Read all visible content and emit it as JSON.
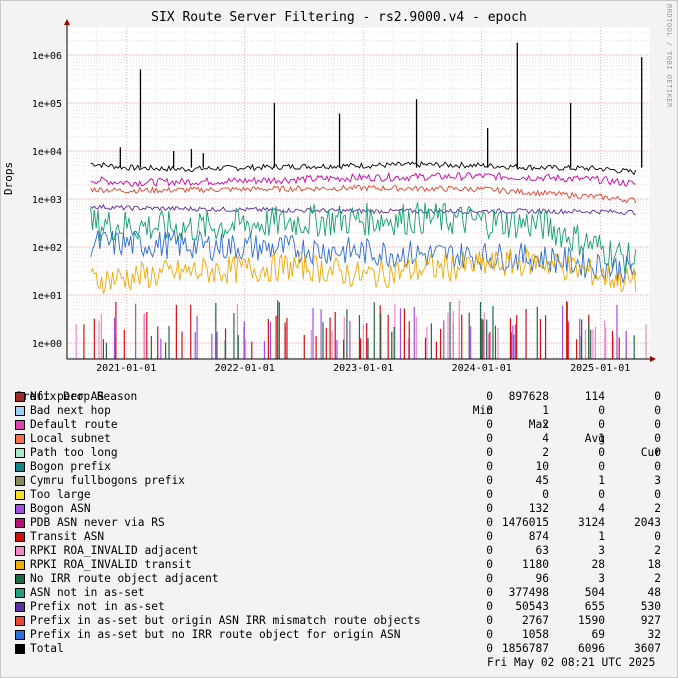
{
  "header": {
    "title": "SIX Route Server Filtering - rs2.9000.v4 - epoch",
    "watermark": "RRDTOOL / TOBI OETIKER"
  },
  "chart_data": {
    "type": "line",
    "title": "SIX Route Server Filtering - rs2.9000.v4 - epoch",
    "ylabel": "Drops",
    "xlabel": "",
    "y_scale": "log",
    "ylim": [
      0.7,
      3000000
    ],
    "xlim": [
      "2020-07-01",
      "2025-06-01"
    ],
    "grid": true,
    "y_ticks": [
      "1e+00",
      "1e+01",
      "1e+02",
      "1e+03",
      "1e+04",
      "1e+05",
      "1e+06"
    ],
    "x_ticks": [
      "2021-01-01",
      "2022-01-01",
      "2023-01-01",
      "2024-01-01",
      "2025-01-01"
    ],
    "background": "#ffffff",
    "grid_color": "#f0a0a0",
    "series": [
      {
        "name": "Total",
        "color": "#000000",
        "points": [
          [
            2020.7,
            5500
          ],
          [
            2021.0,
            4500
          ],
          [
            2021.5,
            4200
          ],
          [
            2022.0,
            4500
          ],
          [
            2022.5,
            4800
          ],
          [
            2023.0,
            5000
          ],
          [
            2023.5,
            5200
          ],
          [
            2024.0,
            5000
          ],
          [
            2024.5,
            4500
          ],
          [
            2025.0,
            4300
          ],
          [
            2025.3,
            3600
          ]
        ]
      },
      {
        "name": "PDB ASN never via RS",
        "color": "#cc00aa",
        "points": [
          [
            2020.7,
            2500
          ],
          [
            2021.0,
            2200
          ],
          [
            2022.0,
            2400
          ],
          [
            2023.0,
            2800
          ],
          [
            2024.0,
            3000
          ],
          [
            2024.5,
            2800
          ],
          [
            2025.0,
            2500
          ],
          [
            2025.3,
            2043
          ]
        ]
      },
      {
        "name": "Prefix in as-set but origin ASN IRR mismatch route objects",
        "color": "#e8402a",
        "points": [
          [
            2020.7,
            1600
          ],
          [
            2021.0,
            1500
          ],
          [
            2022.0,
            1600
          ],
          [
            2023.0,
            1700
          ],
          [
            2024.0,
            1600
          ],
          [
            2025.0,
            1100
          ],
          [
            2025.3,
            927
          ]
        ]
      },
      {
        "name": "Prefix not in as-set",
        "color": "#5a2aa0",
        "points": [
          [
            2020.7,
            700
          ],
          [
            2021.0,
            650
          ],
          [
            2022.0,
            600
          ],
          [
            2023.0,
            560
          ],
          [
            2024.0,
            560
          ],
          [
            2025.0,
            550
          ],
          [
            2025.3,
            530
          ]
        ]
      },
      {
        "name": "ASN not in as-set",
        "color": "#10a070",
        "points": [
          [
            2020.7,
            300
          ],
          [
            2021.5,
            250
          ],
          [
            2022.5,
            350
          ],
          [
            2023.5,
            400
          ],
          [
            2024.5,
            300
          ],
          [
            2025.3,
            48
          ]
        ]
      },
      {
        "name": "Prefix in as-set but no IRR route object for origin ASN",
        "color": "#2a6fd0",
        "points": [
          [
            2020.7,
            120
          ],
          [
            2021.5,
            110
          ],
          [
            2022.5,
            90
          ],
          [
            2023.5,
            70
          ],
          [
            2024.5,
            60
          ],
          [
            2025.3,
            32
          ]
        ]
      },
      {
        "name": "RPKI ROA_INVALID transit",
        "color": "#f0a800",
        "points": [
          [
            2020.7,
            20
          ],
          [
            2021.5,
            30
          ],
          [
            2022.5,
            40
          ],
          [
            2023.0,
            25
          ],
          [
            2023.5,
            35
          ],
          [
            2024.5,
            50
          ],
          [
            2025.3,
            18
          ]
        ]
      }
    ],
    "spikes": [
      {
        "x": 2020.95,
        "y": 12000
      },
      {
        "x": 2021.12,
        "y": 500000
      },
      {
        "x": 2021.4,
        "y": 10000
      },
      {
        "x": 2021.55,
        "y": 11000
      },
      {
        "x": 2021.65,
        "y": 9000
      },
      {
        "x": 2022.25,
        "y": 100000
      },
      {
        "x": 2022.8,
        "y": 60000
      },
      {
        "x": 2023.45,
        "y": 120000
      },
      {
        "x": 2024.05,
        "y": 30000
      },
      {
        "x": 2024.3,
        "y": 1800000
      },
      {
        "x": 2024.75,
        "y": 100000
      },
      {
        "x": 2025.35,
        "y": 900000
      }
    ],
    "columns": [
      "Min",
      "Max",
      "Avg",
      "Cur"
    ]
  },
  "legend": {
    "header": "Prefix Drop Reason",
    "columns": {
      "min": "Min",
      "max": "Max",
      "avg": "Avg",
      "cur": "Cur"
    },
    "rows": [
      {
        "name": "Not peer AS",
        "color": "#a02828",
        "min": "0",
        "max": "897628",
        "avg": "114",
        "cur": "0"
      },
      {
        "name": "Bad next hop",
        "color": "#9ecff0",
        "min": "0",
        "max": "1",
        "avg": "0",
        "cur": "0"
      },
      {
        "name": "Default route",
        "color": "#e040b0",
        "min": "0",
        "max": "2",
        "avg": "0",
        "cur": "0"
      },
      {
        "name": "Local subnet",
        "color": "#f07050",
        "min": "0",
        "max": "4",
        "avg": "1",
        "cur": "0"
      },
      {
        "name": "Path too long",
        "color": "#a8e8c8",
        "min": "0",
        "max": "2",
        "avg": "0",
        "cur": "0"
      },
      {
        "name": "Bogon prefix",
        "color": "#108888",
        "min": "0",
        "max": "10",
        "avg": "0",
        "cur": "0"
      },
      {
        "name": "Cymru fullbogons prefix",
        "color": "#8a8a5a",
        "min": "0",
        "max": "45",
        "avg": "1",
        "cur": "3"
      },
      {
        "name": "Too large",
        "color": "#f8e020",
        "min": "0",
        "max": "0",
        "avg": "0",
        "cur": "0"
      },
      {
        "name": "Bogon ASN",
        "color": "#a050e0",
        "min": "0",
        "max": "132",
        "avg": "4",
        "cur": "2"
      },
      {
        "name": "PDB ASN never via RS",
        "color": "#b8107a",
        "min": "0",
        "max": "1476015",
        "avg": "3124",
        "cur": "2043"
      },
      {
        "name": "Transit ASN",
        "color": "#d01010",
        "min": "0",
        "max": "874",
        "avg": "1",
        "cur": "0"
      },
      {
        "name": "RPKI ROA_INVALID adjacent",
        "color": "#f088c8",
        "min": "0",
        "max": "63",
        "avg": "3",
        "cur": "2"
      },
      {
        "name": "RPKI ROA_INVALID transit",
        "color": "#f0b000",
        "min": "0",
        "max": "1180",
        "avg": "28",
        "cur": "18"
      },
      {
        "name": "No IRR route object adjacent",
        "color": "#206848",
        "min": "0",
        "max": "96",
        "avg": "3",
        "cur": "2"
      },
      {
        "name": "ASN not in as-set",
        "color": "#20a080",
        "min": "0",
        "max": "377498",
        "avg": "504",
        "cur": "48"
      },
      {
        "name": "Prefix not in as-set",
        "color": "#6030a8",
        "min": "0",
        "max": "50543",
        "avg": "655",
        "cur": "530"
      },
      {
        "name": "Prefix in as-set but origin ASN IRR mismatch route objects",
        "color": "#e84838",
        "min": "0",
        "max": "2767",
        "avg": "1590",
        "cur": "927"
      },
      {
        "name": "Prefix in as-set but no IRR route object for origin ASN",
        "color": "#2870d8",
        "min": "0",
        "max": "1058",
        "avg": "69",
        "cur": "32"
      },
      {
        "name": "Total",
        "color": "#000000",
        "min": "0",
        "max": "1856787",
        "avg": "6096",
        "cur": "3607"
      }
    ]
  },
  "footer": {
    "timestamp": "Fri May 02 08:21 UTC 2025"
  }
}
